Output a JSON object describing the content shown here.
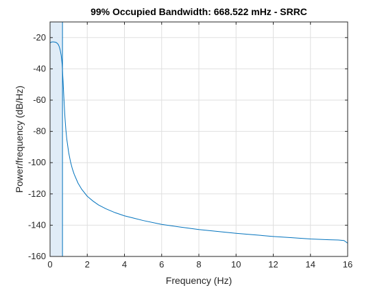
{
  "chart_data": {
    "type": "line",
    "title": "99% Occupied Bandwidth: 668.522 mHz - SRRC",
    "xlabel": "Frequency (Hz)",
    "ylabel": "Power/frequency (dB/Hz)",
    "xlim": [
      0,
      16
    ],
    "ylim": [
      -160,
      -10
    ],
    "xticks": [
      0,
      2,
      4,
      6,
      8,
      10,
      12,
      14,
      16
    ],
    "yticks": [
      -160,
      -140,
      -120,
      -100,
      -80,
      -60,
      -40,
      -20
    ],
    "grid": true,
    "occupied_band": [
      0,
      0.6685
    ],
    "series": [
      {
        "color": "#0072bd",
        "x": [
          0,
          0.05,
          0.1,
          0.15,
          0.2,
          0.25,
          0.3,
          0.35,
          0.4,
          0.45,
          0.5,
          0.55,
          0.6,
          0.65,
          0.7,
          0.75,
          0.8,
          0.85,
          0.9,
          1.0,
          1.1,
          1.2,
          1.3,
          1.5,
          1.7,
          2.0,
          2.3,
          2.6,
          3.0,
          3.5,
          4.0,
          4.5,
          5.0,
          6.0,
          7.0,
          8.0,
          9.0,
          10.0,
          11.0,
          12.0,
          13.0,
          14.0,
          15.0,
          15.5,
          15.8,
          16.0
        ],
        "y": [
          -23.5,
          -23.0,
          -22.8,
          -22.8,
          -22.8,
          -22.9,
          -23.0,
          -23.3,
          -23.8,
          -24.6,
          -26.0,
          -28.3,
          -31.5,
          -37,
          -48,
          -60,
          -71,
          -79,
          -85,
          -93.5,
          -99.5,
          -104,
          -107.5,
          -113,
          -117,
          -121.5,
          -124.5,
          -127,
          -129.5,
          -132,
          -134,
          -135.5,
          -137,
          -139.5,
          -141.2,
          -142.8,
          -144.0,
          -145.2,
          -146.2,
          -147.2,
          -148.0,
          -148.8,
          -149.3,
          -149.5,
          -149.8,
          -151.5
        ]
      }
    ]
  }
}
